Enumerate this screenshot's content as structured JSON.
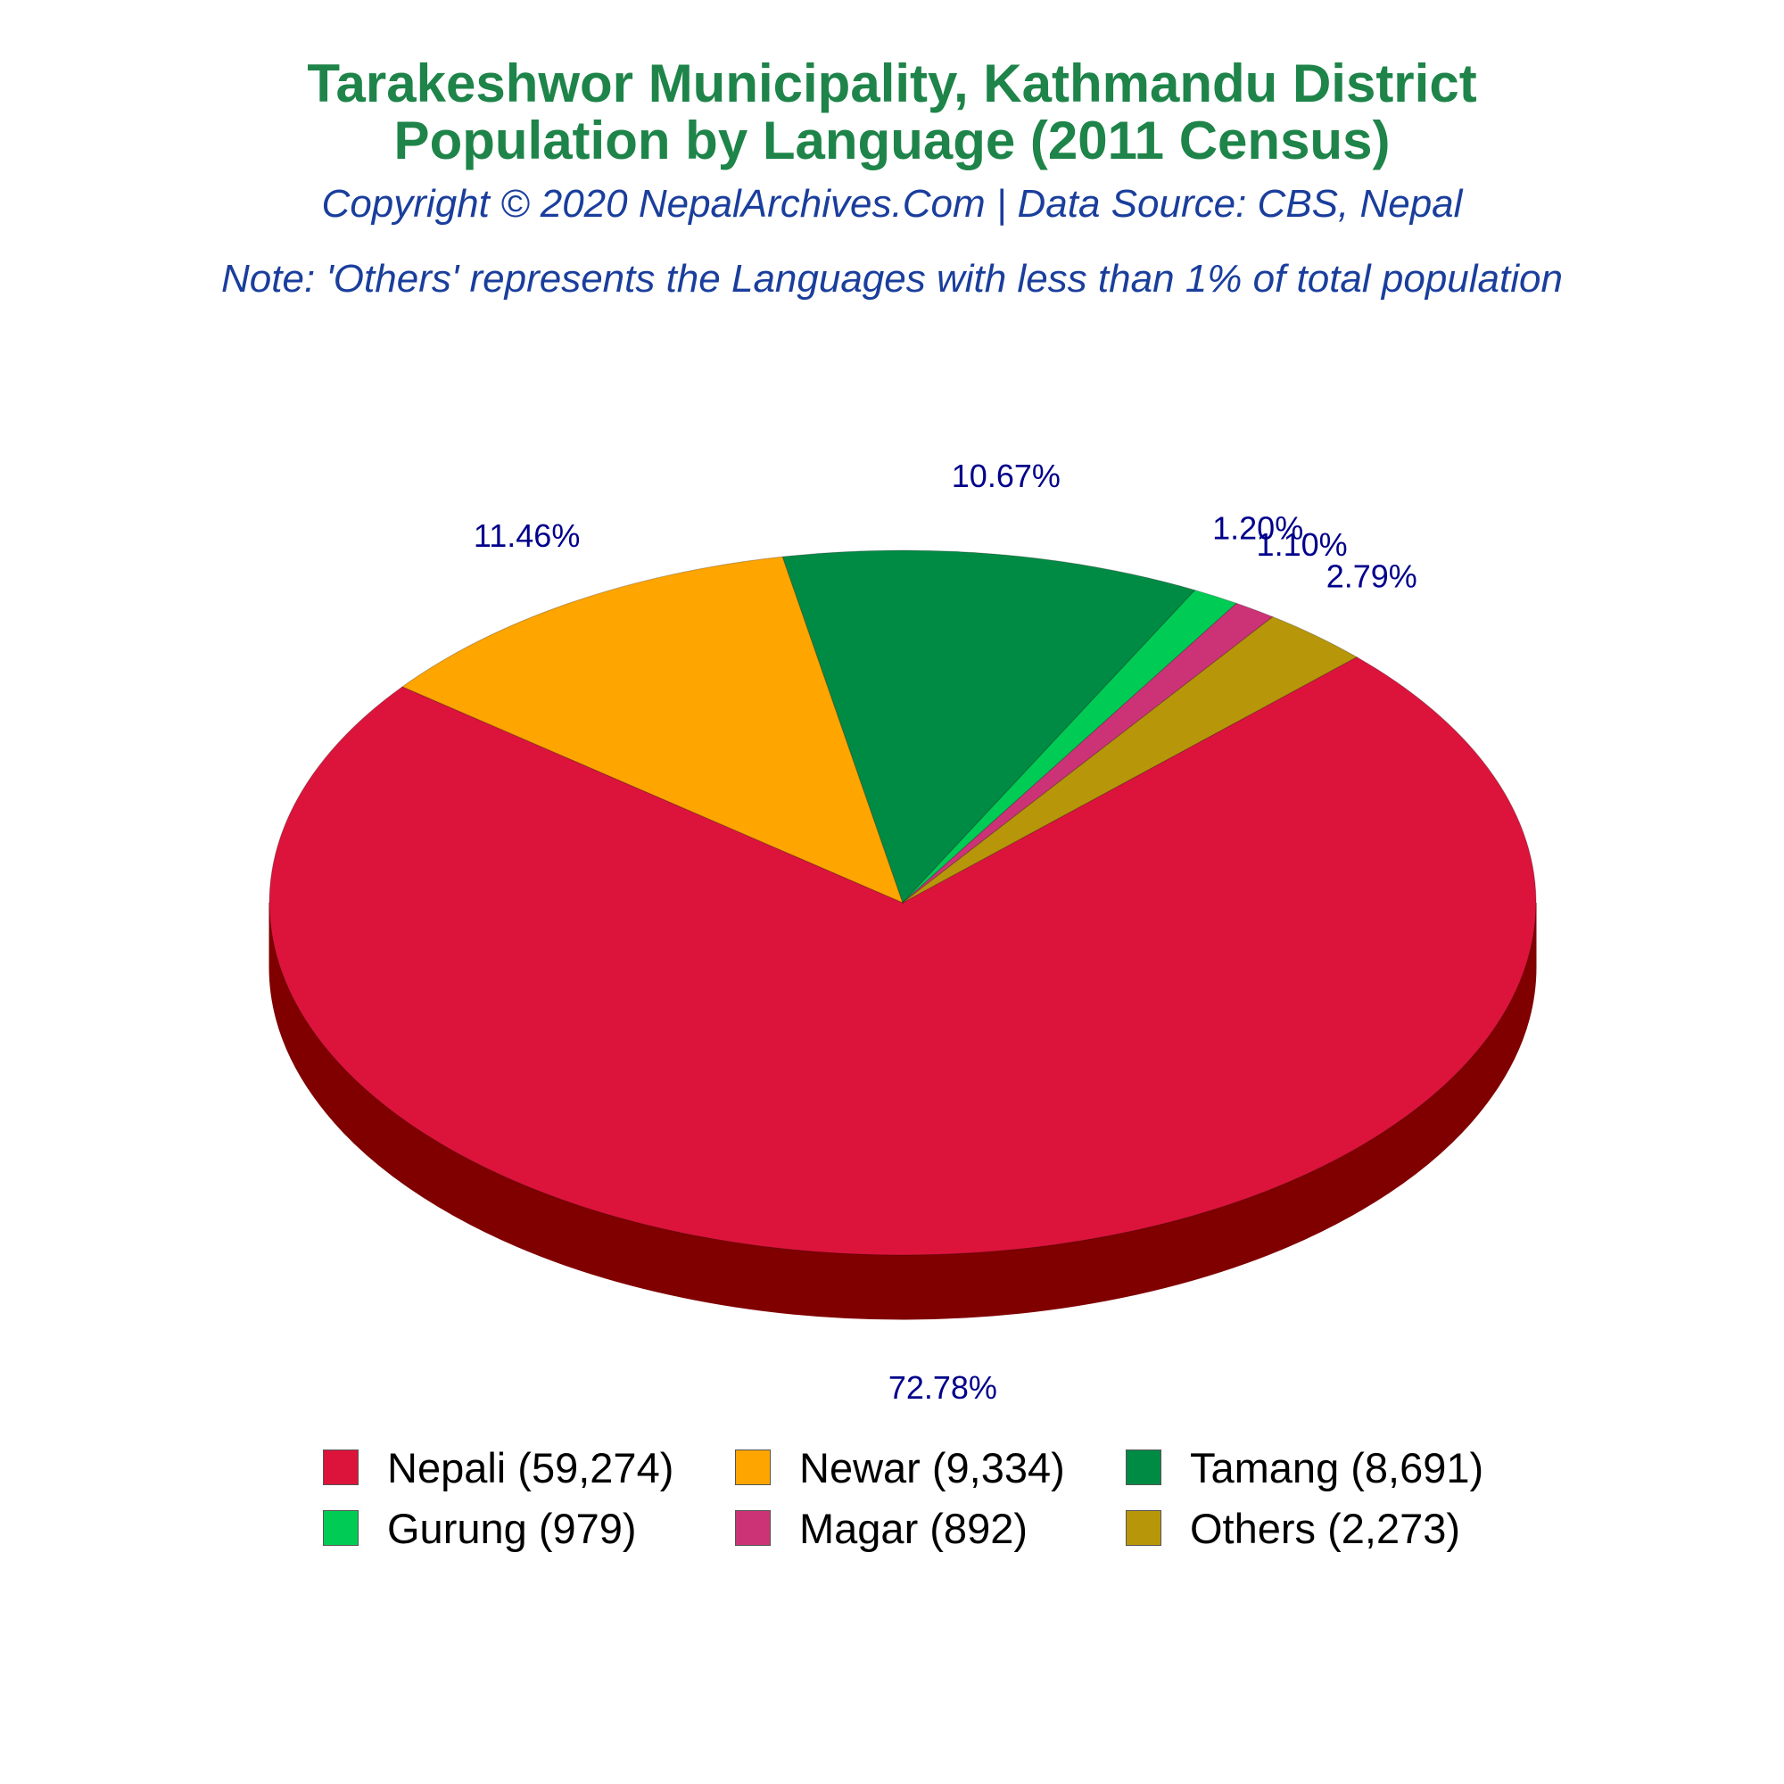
{
  "header": {
    "title_line1": "Tarakeshwor Municipality, Kathmandu District",
    "title_line2": "Population by Language (2011 Census)",
    "subtitle": "Copyright © 2020 NepalArchives.Com | Data Source: CBS, Nepal",
    "note": "Note: 'Others' represents the Languages with less than 1% of total population"
  },
  "chart_data": {
    "type": "pie",
    "style": "3d",
    "slices": [
      {
        "label": "Nepali (59,274)",
        "value": 59274,
        "percent_label": "72.78%",
        "color": "#dc143c",
        "side_color": "#800000"
      },
      {
        "label": "Newar (9,334)",
        "value": 9334,
        "percent_label": "11.46%",
        "color": "#ffa500",
        "side_color": "#a34a00"
      },
      {
        "label": "Tamang (8,691)",
        "value": 8691,
        "percent_label": "10.67%",
        "color": "#008b45",
        "side_color": "#003000"
      },
      {
        "label": "Gurung (979)",
        "value": 979,
        "percent_label": "1.20%",
        "color": "#00cc55",
        "side_color": "#006b2b"
      },
      {
        "label": "Magar (892)",
        "value": 892,
        "percent_label": "1.10%",
        "color": "#cc3377",
        "side_color": "#6b1a3e"
      },
      {
        "label": "Others (2,273)",
        "value": 2273,
        "percent_label": "2.79%",
        "color": "#b8960a",
        "side_color": "#6b5706"
      }
    ],
    "legend_position": "bottom"
  }
}
